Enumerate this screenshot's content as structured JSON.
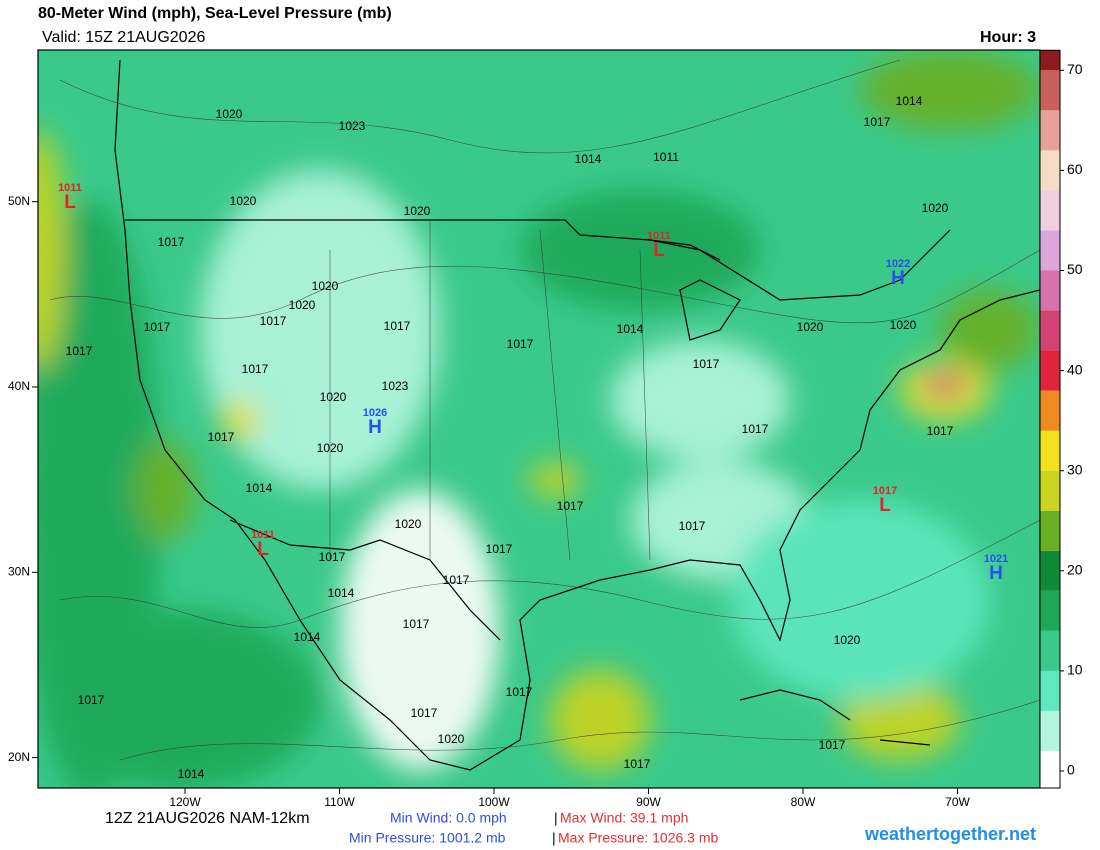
{
  "header": {
    "title": "80-Meter Wind (mph), Sea-Level Pressure (mb)",
    "valid": "Valid: 15Z 21AUG2026",
    "hour": "Hour: 3"
  },
  "map": {
    "lon_ticks": [
      {
        "value": -120,
        "label": "120W"
      },
      {
        "value": -110,
        "label": "110W"
      },
      {
        "value": -100,
        "label": "100W"
      },
      {
        "value": -90,
        "label": "90W"
      },
      {
        "value": -80,
        "label": "80W"
      },
      {
        "value": -70,
        "label": "70W"
      }
    ],
    "lat_ticks": [
      {
        "value": 50,
        "label": "50N"
      },
      {
        "value": 40,
        "label": "40N"
      },
      {
        "value": 30,
        "label": "30N"
      },
      {
        "value": 20,
        "label": "20N"
      }
    ],
    "pressure_centers": [
      {
        "symbol": "H",
        "value": "1022"
      },
      {
        "symbol": "H",
        "value": "1026"
      },
      {
        "symbol": "H",
        "value": "1021"
      },
      {
        "symbol": "L",
        "value": "1011"
      },
      {
        "symbol": "L",
        "value": "1011"
      },
      {
        "symbol": "L",
        "value": "1017"
      },
      {
        "symbol": "L",
        "value": "1011"
      }
    ],
    "isobar_labels": [
      "1020",
      "1023",
      "1014",
      "1011",
      "1014",
      "1017",
      "1020",
      "1020",
      "1017",
      "1020",
      "1020",
      "1020",
      "1017",
      "1017",
      "1017",
      "1014",
      "1017",
      "1020",
      "1020",
      "1017",
      "1017",
      "1020",
      "1023",
      "1017",
      "1017",
      "1017",
      "1017",
      "1020",
      "1014",
      "1017",
      "1020",
      "1017",
      "1017",
      "1017",
      "1017",
      "1014",
      "1017",
      "1014",
      "1020",
      "1017",
      "1017",
      "1017",
      "1020",
      "1017",
      "1017",
      "1014"
    ]
  },
  "colorbar": {
    "lim": [
      -1.7,
      72
    ],
    "ticks": [
      0,
      10,
      20,
      30,
      40,
      50,
      60,
      70
    ],
    "bins": [
      -2,
      2,
      6,
      10,
      14,
      18,
      22,
      26,
      30,
      34,
      38,
      42,
      46,
      50,
      54,
      58,
      62,
      66,
      70,
      72
    ],
    "colors": [
      "#ffffff",
      "#b4f5df",
      "#5fe8c0",
      "#3bc98a",
      "#1ea757",
      "#0f8a38",
      "#6aae22",
      "#cbd41e",
      "#f2e01c",
      "#f08a20",
      "#e0243c",
      "#d24274",
      "#d872ac",
      "#dca6dc",
      "#f2cde0",
      "#f6dcc4",
      "#e6a29a",
      "#c86060",
      "#8e1c1c"
    ]
  },
  "footer": {
    "run": "12Z 21AUG2026 NAM-12km",
    "min_wind": "Min Wind:   0.0 mph",
    "sep1": "|",
    "max_wind": "Max Wind:  39.1 mph",
    "min_pressure": "Min Pressure: 1001.2 mb",
    "sep2": "|",
    "max_pressure": "Max Pressure: 1026.3 mb",
    "site": "weathertogether.net"
  }
}
